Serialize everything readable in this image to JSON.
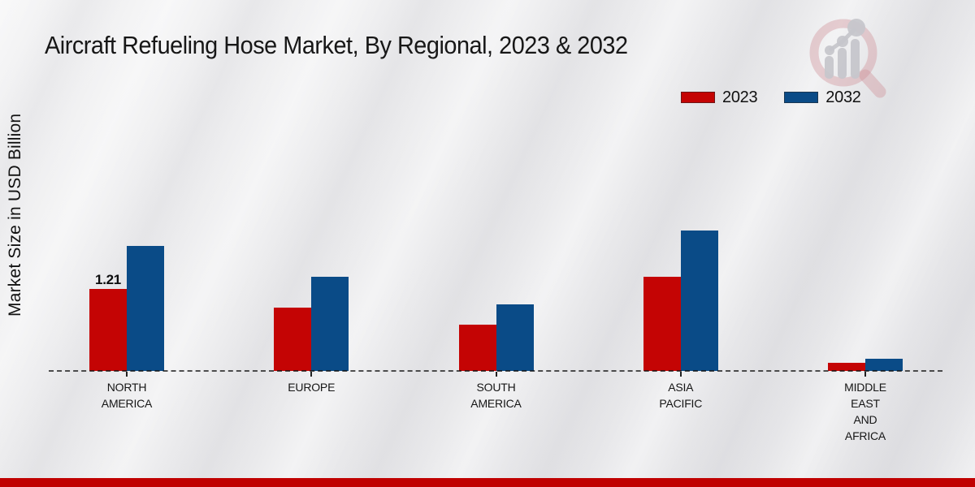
{
  "title": "Aircraft Refueling Hose Market, By Regional, 2023 & 2032",
  "y_axis_label": "Market Size in USD Billion",
  "colors": {
    "series_2023": "#c40404",
    "series_2032": "#0a4b87",
    "footer_bar": "#c00000",
    "baseline": "#1a1a1a",
    "logo_ring": "#cf9099",
    "logo_glyph": "#c6c6cb"
  },
  "legend": {
    "position": "top-right",
    "items": [
      {
        "label": "2023",
        "color": "#c40404"
      },
      {
        "label": "2032",
        "color": "#0a4b87"
      }
    ]
  },
  "logo": {
    "name": "magnifier-bar-chart-watermark"
  },
  "chart_data": {
    "type": "bar",
    "title": "Aircraft Refueling Hose Market, By Regional, 2023 & 2032",
    "xlabel": "",
    "ylabel": "Market Size in USD Billion",
    "ylim": [
      0,
      2.2
    ],
    "grid": false,
    "legend_position": "top-right",
    "baseline_style": "dashed",
    "categories": [
      "NORTH AMERICA",
      "EUROPE",
      "SOUTH AMERICA",
      "ASIA PACIFIC",
      "MIDDLE EAST AND AFRICA"
    ],
    "category_label_lines": [
      [
        "NORTH",
        "AMERICA"
      ],
      [
        "EUROPE"
      ],
      [
        "SOUTH",
        "AMERICA"
      ],
      [
        "ASIA",
        "PACIFIC"
      ],
      [
        "MIDDLE",
        "EAST",
        "AND",
        "AFRICA"
      ]
    ],
    "series": [
      {
        "name": "2023",
        "color": "#c40404",
        "values": [
          1.21,
          0.94,
          0.69,
          1.4,
          0.12
        ]
      },
      {
        "name": "2032",
        "color": "#0a4b87",
        "values": [
          1.85,
          1.39,
          0.98,
          2.08,
          0.18
        ]
      }
    ],
    "annotations": [
      {
        "series_index": 0,
        "category_index": 0,
        "text": "1.21"
      }
    ]
  }
}
